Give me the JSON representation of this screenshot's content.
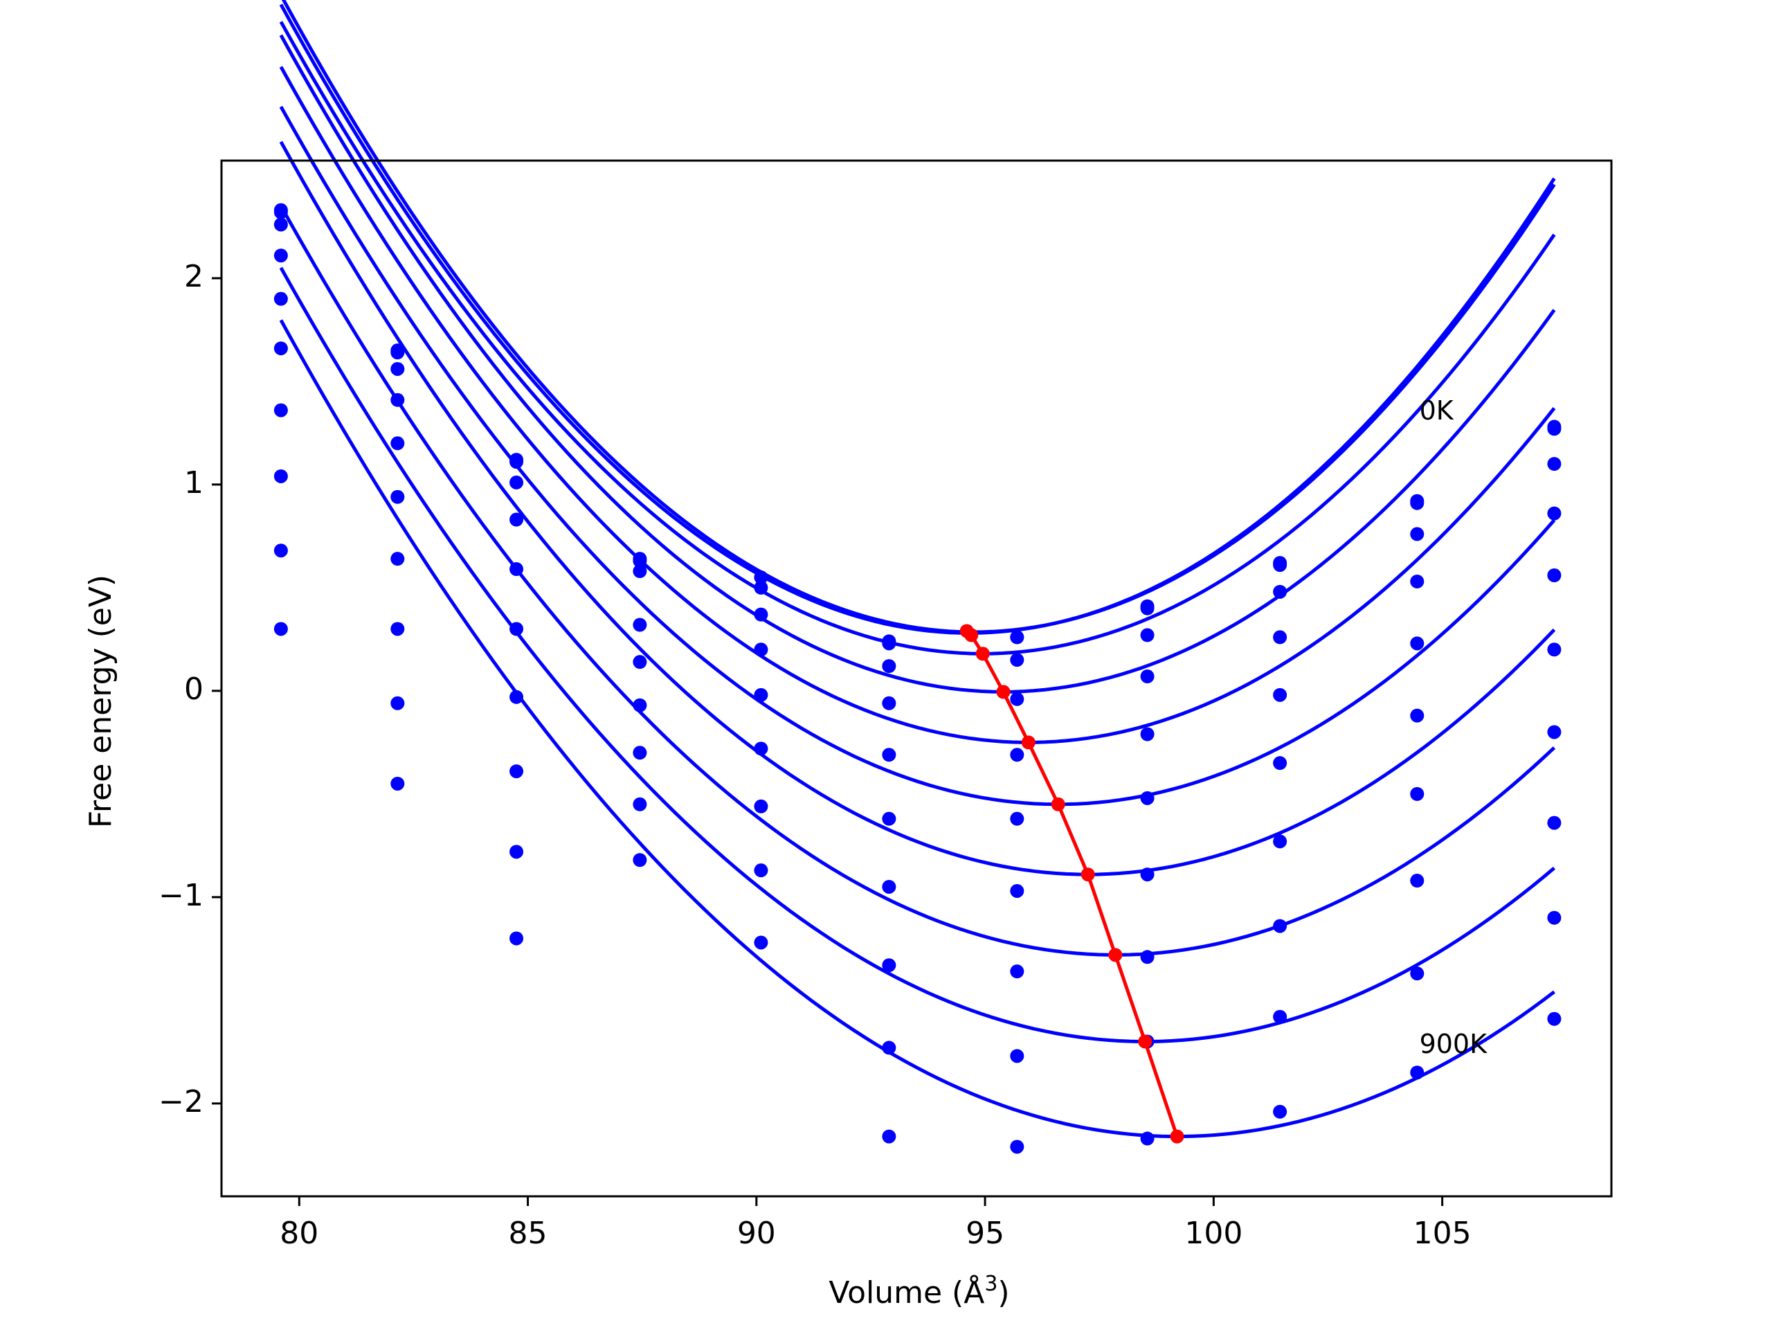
{
  "chart_data": {
    "type": "scatter",
    "title": "",
    "xlabel": "Volume (Å",
    "xlabel_sup": "3",
    "xlabel_close": ")",
    "ylabel": "Free energy (eV)",
    "xlim": [
      78.3,
      108.7
    ],
    "ylim": [
      -2.45,
      2.57
    ],
    "xticks": [
      80,
      85,
      90,
      95,
      100,
      105
    ],
    "yticks": [
      -2,
      -1,
      0,
      1,
      2
    ],
    "ytick_labels": [
      "−2",
      "−1",
      "0",
      "1",
      "2"
    ],
    "grid": false,
    "legend": "none",
    "annotations": [
      {
        "text": "0K",
        "x": 104.5,
        "y": 1.35
      },
      {
        "text": "900K",
        "x": 104.5,
        "y": -1.72
      }
    ],
    "colors": {
      "data": "#0000ff",
      "equilibrium": "#ff0000"
    },
    "x": [
      79.6,
      82.15,
      84.75,
      87.45,
      90.1,
      92.9,
      95.7,
      98.55,
      101.45,
      104.45,
      107.45
    ],
    "series": [
      {
        "points": [
          2.33,
          1.65,
          1.12,
          0.64,
          0.55,
          0.24,
          0.26,
          0.41,
          0.62,
          0.92,
          1.28
        ],
        "fit": {
          "a": 0.01345,
          "v0": 94.75,
          "e0": 0.285,
          "vmin": 79.6,
          "vmax": 107.45
        }
      },
      {
        "points": [
          2.32,
          1.64,
          1.11,
          0.63,
          0.5,
          0.23,
          0.26,
          0.4,
          0.61,
          0.91,
          1.27
        ],
        "fit": {
          "a": 0.01345,
          "v0": 94.65,
          "e0": 0.28,
          "vmin": 79.6,
          "vmax": 107.45
        }
      },
      {
        "points": [
          2.26,
          1.56,
          1.01,
          0.58,
          0.37,
          0.12,
          0.15,
          0.27,
          0.48,
          0.76,
          1.1
        ],
        "fit": {
          "a": 0.013,
          "v0": 94.95,
          "e0": 0.18,
          "vmin": 79.6,
          "vmax": 107.45
        }
      },
      {
        "points": [
          2.11,
          1.41,
          0.83,
          0.32,
          0.2,
          -0.06,
          -0.04,
          0.07,
          0.26,
          0.53,
          0.86
        ],
        "fit": {
          "a": 0.01275,
          "v0": 95.4,
          "e0": -0.005,
          "vmin": 79.6,
          "vmax": 107.45
        }
      },
      {
        "points": [
          1.9,
          1.2,
          0.59,
          0.14,
          -0.02,
          -0.31,
          -0.31,
          -0.21,
          -0.02,
          0.23,
          0.56
        ],
        "fit": {
          "a": 0.01225,
          "v0": 95.95,
          "e0": -0.25,
          "vmin": 79.6,
          "vmax": 107.45
        }
      },
      {
        "points": [
          1.66,
          0.94,
          0.3,
          -0.07,
          -0.28,
          -0.62,
          -0.62,
          -0.52,
          -0.35,
          -0.12,
          0.2
        ],
        "fit": {
          "a": 0.0117,
          "v0": 96.6,
          "e0": -0.55,
          "vmin": 79.6,
          "vmax": 107.45
        }
      },
      {
        "points": [
          1.36,
          0.64,
          -0.03,
          -0.3,
          -0.56,
          -0.95,
          -0.97,
          -0.89,
          -0.73,
          -0.5,
          -0.2
        ],
        "fit": {
          "a": 0.0114,
          "v0": 97.25,
          "e0": -0.89,
          "vmin": 79.6,
          "vmax": 107.45
        }
      },
      {
        "points": [
          1.04,
          0.3,
          -0.39,
          -0.55,
          -0.87,
          -1.33,
          -1.36,
          -1.29,
          -1.14,
          -0.92,
          -0.64
        ],
        "fit": {
          "a": 0.0109,
          "v0": 97.85,
          "e0": -1.28,
          "vmin": 79.6,
          "vmax": 107.45
        }
      },
      {
        "points": [
          0.68,
          -0.06,
          -0.78,
          -0.82,
          -1.22,
          -1.73,
          -1.77,
          -1.7,
          -1.58,
          -1.37,
          -1.1
        ],
        "fit": {
          "a": 0.0105,
          "v0": 98.5,
          "e0": -1.7,
          "vmin": 79.6,
          "vmax": 107.45
        }
      },
      {
        "points": [
          0.3,
          -0.45,
          -1.2,
          null,
          null,
          -2.16,
          -2.21,
          -2.17,
          -2.04,
          -1.85,
          -1.59
        ],
        "fit": {
          "a": 0.0103,
          "v0": 99.2,
          "e0": -2.16,
          "vmin": 79.6,
          "vmax": 107.45
        }
      }
    ],
    "equilibrium": {
      "x": [
        94.6,
        94.7,
        94.95,
        95.4,
        95.95,
        96.6,
        97.25,
        97.85,
        98.5,
        99.2
      ],
      "y": [
        0.29,
        0.27,
        0.18,
        -0.005,
        -0.25,
        -0.55,
        -0.89,
        -1.28,
        -1.7,
        -2.16
      ]
    }
  }
}
